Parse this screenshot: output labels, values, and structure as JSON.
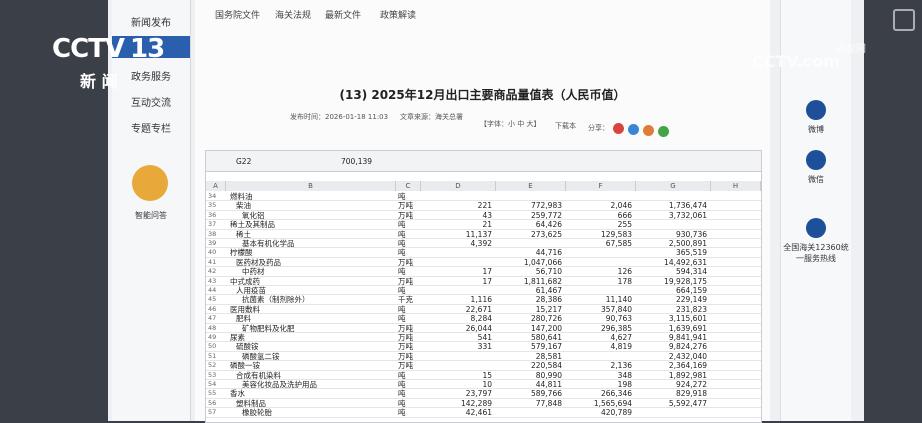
{
  "broadcast": {
    "channel_logo": "CCTV",
    "channel_number": "13",
    "program": "新 闻",
    "watermark_cn": "央视网",
    "watermark_en": "CCTV.com"
  },
  "nav": {
    "items": [
      "新闻发布",
      "政务服务",
      "互动交流",
      "专题专栏"
    ],
    "assistant": "智能问答"
  },
  "tabs": [
    "国务院文件",
    "海关法规",
    "最新文件",
    "政策解读"
  ],
  "article": {
    "title": "(13) 2025年12月出口主要商品量值表（人民币值）",
    "published": "发布时间：2026-01-18 11:03",
    "source": "文章来源：海关总署",
    "font": "【字体：小 中 大】",
    "download": "下载本",
    "share": "分享："
  },
  "sheet": {
    "cell_ref": "G22",
    "formula_value": "700,139",
    "columns": [
      "A",
      "B",
      "C",
      "D",
      "E",
      "F",
      "G",
      "H"
    ],
    "rows": [
      [
        "34",
        "燃料油",
        "吨",
        null,
        null,
        null,
        null
      ],
      [
        "35",
        "柴油",
        "万吨",
        "221",
        "772,983",
        "2,046",
        "1,736,474"
      ],
      [
        "36",
        "氧化铝",
        "万吨",
        "43",
        "259,772",
        "666",
        "3,732,061"
      ],
      [
        "37",
        "稀土及其制品",
        "吨",
        "21",
        "64,426",
        "255",
        null
      ],
      [
        "38",
        "稀土",
        "吨",
        "11,137",
        "273,625",
        "129,583",
        "930,736"
      ],
      [
        "39",
        "基本有机化学品",
        "吨",
        "4,392",
        null,
        "67,585",
        "2,500,891"
      ],
      [
        "40",
        "柠檬酸",
        "吨",
        null,
        "44,716",
        null,
        "365,519"
      ],
      [
        "41",
        "医药材及药品",
        "万吨",
        null,
        "1,047,066",
        null,
        "14,492,631"
      ],
      [
        "42",
        "中药材",
        "吨",
        "17",
        "56,710",
        "126",
        "594,314"
      ],
      [
        "43",
        "中式成药",
        "万吨",
        "17",
        "1,811,682",
        "178",
        "19,928,175"
      ],
      [
        "44",
        "人用疫苗",
        "吨",
        null,
        "61,467",
        null,
        "664,159"
      ],
      [
        "45",
        "抗菌素（制剂除外）",
        "千克",
        "1,116",
        "28,386",
        "11,140",
        "229,149"
      ],
      [
        "46",
        "医用敷料",
        "吨",
        "22,671",
        "15,217",
        "357,840",
        "231,823"
      ],
      [
        "47",
        "肥料",
        "吨",
        "8,284",
        "280,726",
        "90,763",
        "3,115,601"
      ],
      [
        "48",
        "矿物肥料及化肥",
        "万吨",
        "26,044",
        "147,200",
        "296,385",
        "1,639,691"
      ],
      [
        "49",
        "尿素",
        "万吨",
        "541",
        "580,641",
        "4,627",
        "9,841,941"
      ],
      [
        "50",
        "硫酸铵",
        "万吨",
        "331",
        "579,167",
        "4,819",
        "9,824,276"
      ],
      [
        "51",
        "磷酸氢二铵",
        "万吨",
        null,
        "28,581",
        null,
        "2,432,040"
      ],
      [
        "52",
        "磷酸一铵",
        "万吨",
        null,
        "220,584",
        "2,136",
        "2,364,169"
      ],
      [
        "53",
        "合成有机染料",
        "吨",
        "15",
        "80,990",
        "348",
        "1,892,981"
      ],
      [
        "54",
        "美容化妆品及洗护用品",
        "吨",
        "10",
        "44,811",
        "198",
        "924,272"
      ],
      [
        "55",
        "香水",
        "吨",
        "23,797",
        "589,766",
        "266,346",
        "829,918"
      ],
      [
        "56",
        "塑料制品",
        "吨",
        "142,289",
        "77,848",
        "1,565,694",
        "5,592,477"
      ],
      [
        "57",
        "橡胶轮胎",
        "吨",
        "42,461",
        null,
        "420,789",
        null
      ]
    ]
  },
  "right": {
    "items": [
      "微博",
      "微信"
    ],
    "hotline": "全国海关12360统一服务热线"
  }
}
